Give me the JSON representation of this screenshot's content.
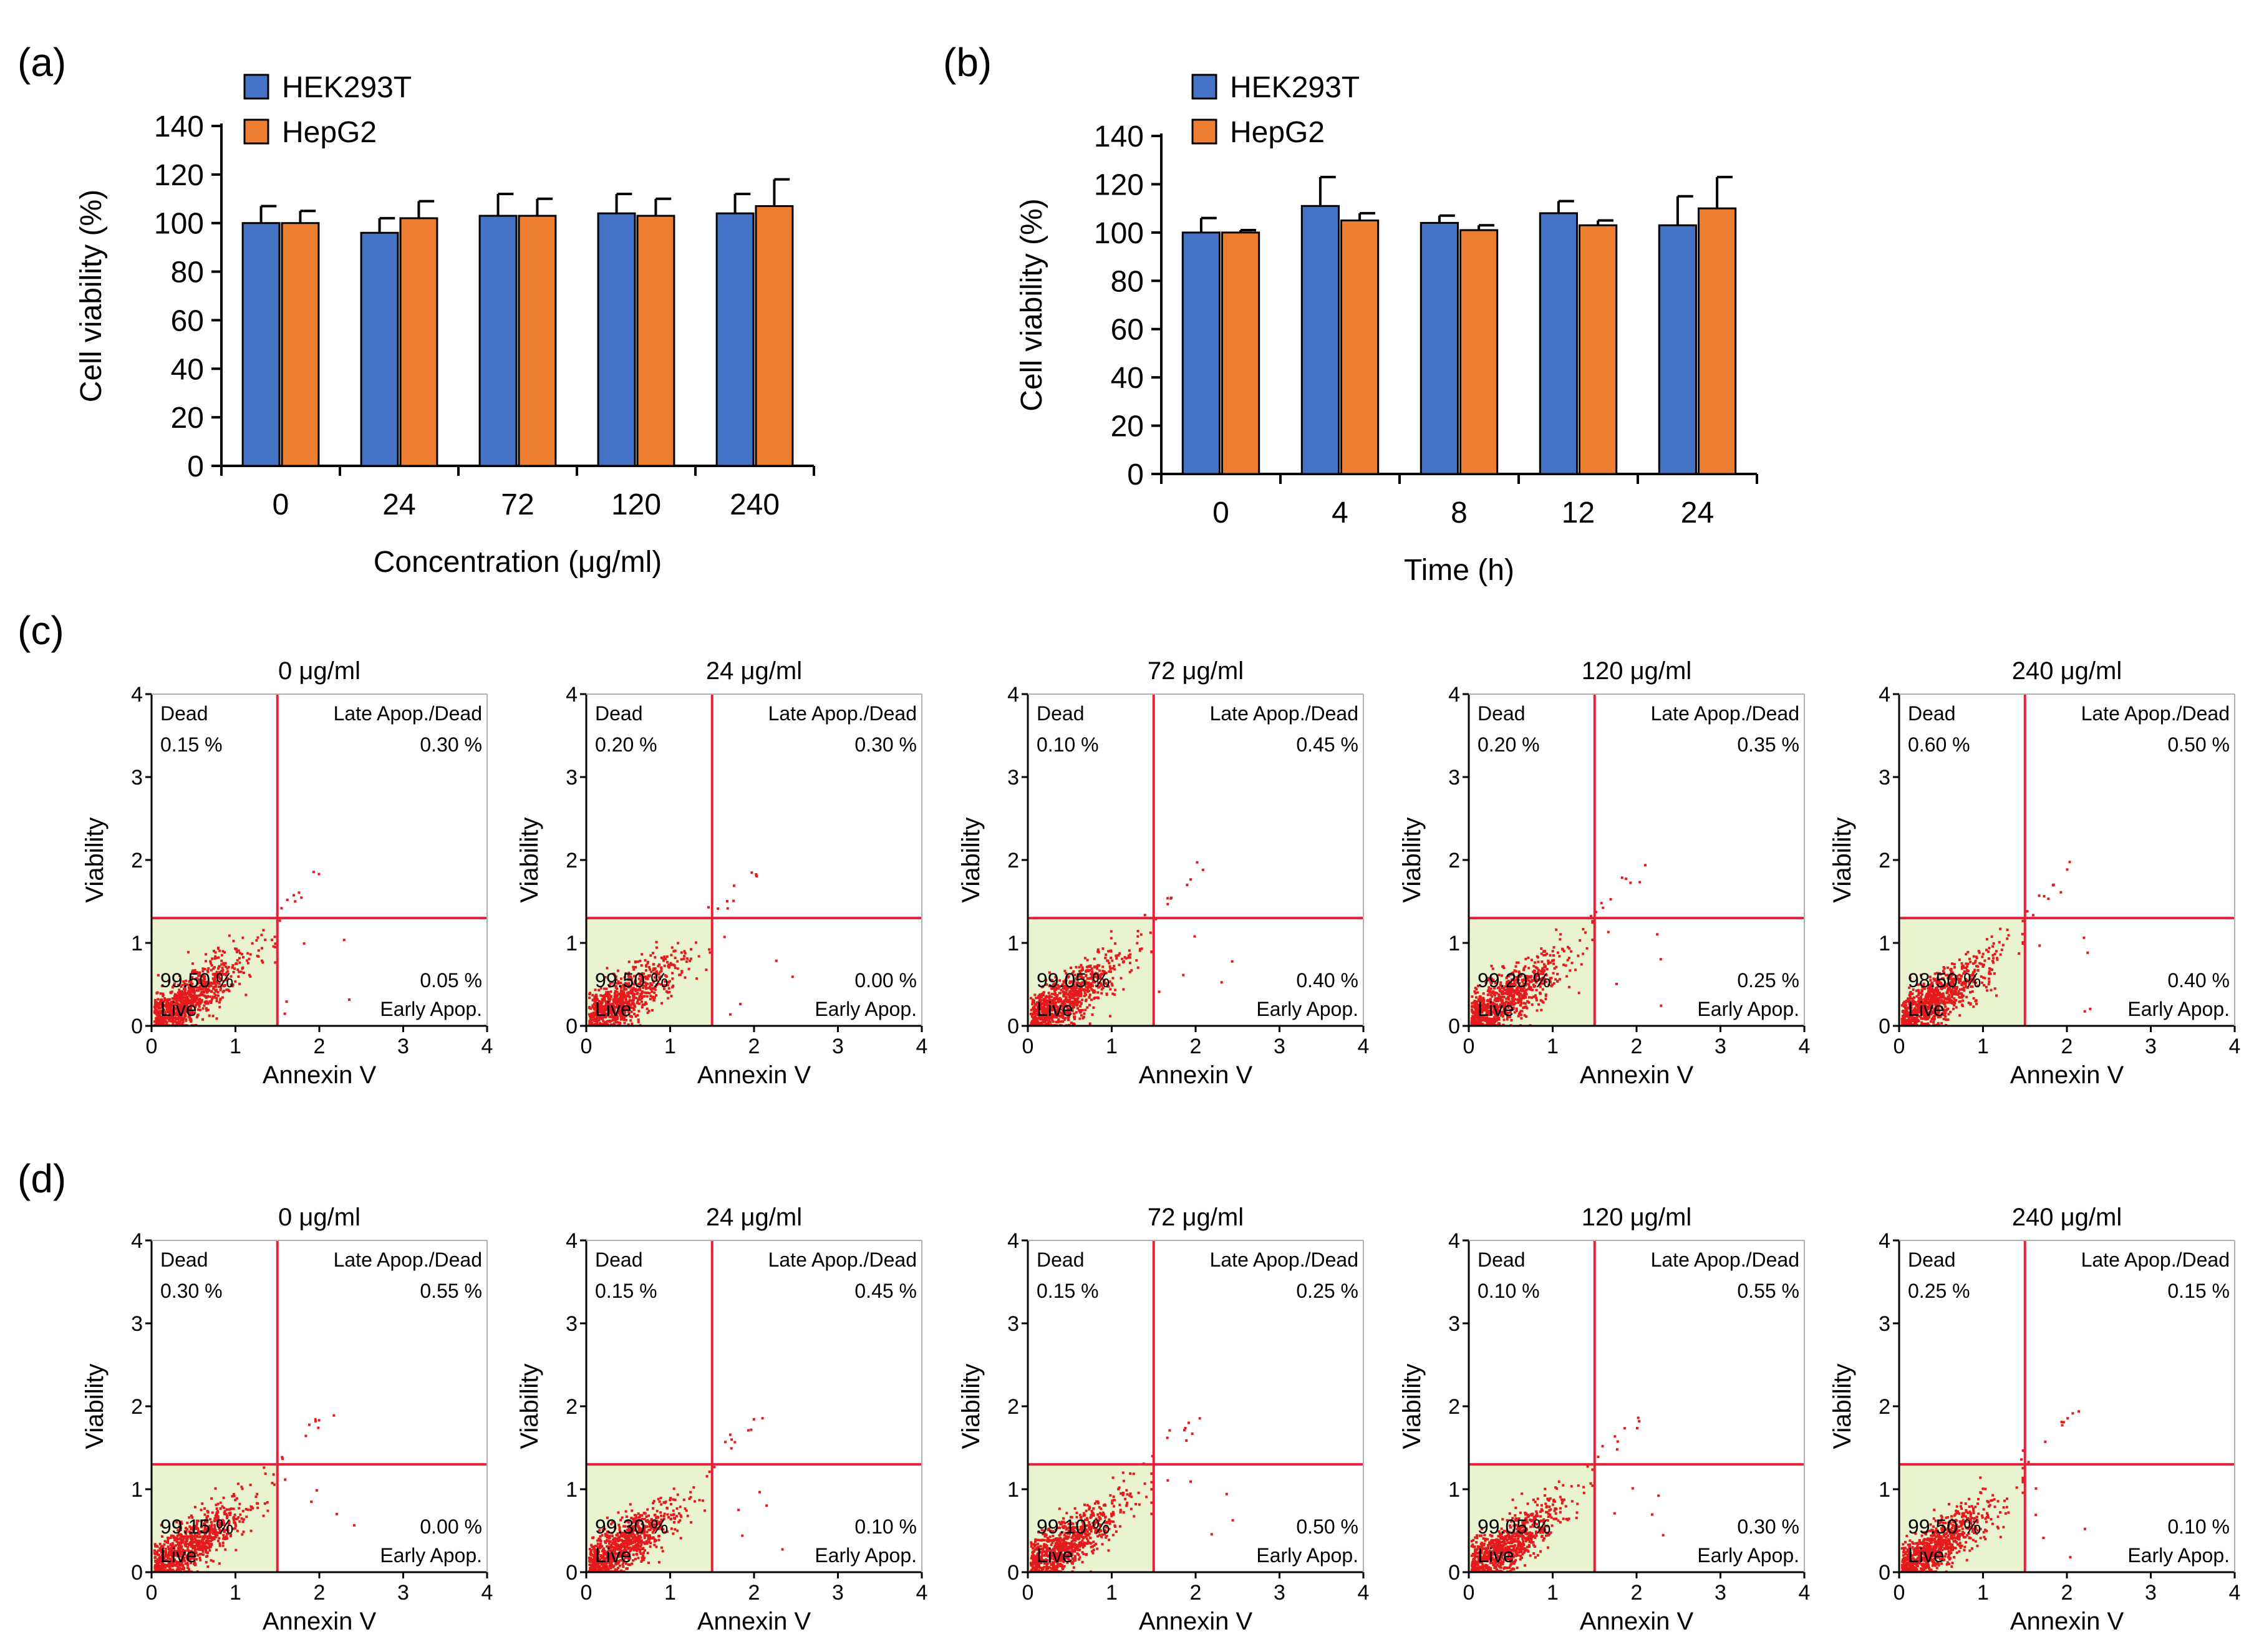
{
  "colors": {
    "hek": "#4472C4",
    "hepg2": "#ED7D31",
    "gate_line": "#E8203A",
    "live_fill": "#EAF3CF",
    "dots": "#E41A1C",
    "axis": "#000000"
  },
  "panel_labels": [
    "(a)",
    "(b)",
    "(c)",
    "(d)"
  ],
  "chart_data": [
    {
      "id": "a",
      "type": "bar",
      "title": "",
      "xlabel": "Concentration  (μg/ml)",
      "ylabel": "Cell viability  (%)",
      "ylim": [
        0,
        140
      ],
      "yticks": [
        0,
        20,
        40,
        60,
        80,
        100,
        120,
        140
      ],
      "categories": [
        "0",
        "24",
        "72",
        "120",
        "240"
      ],
      "legend": [
        "HEK293T",
        "HepG2"
      ],
      "series": [
        {
          "name": "HEK293T",
          "color_key": "hek",
          "values": [
            100,
            96,
            103,
            104,
            104
          ],
          "errors": [
            7,
            6,
            9,
            8,
            8
          ]
        },
        {
          "name": "HepG2",
          "color_key": "hepg2",
          "values": [
            100,
            102,
            103,
            103,
            107
          ],
          "errors": [
            5,
            7,
            7,
            7,
            11
          ]
        }
      ]
    },
    {
      "id": "b",
      "type": "bar",
      "title": "",
      "xlabel": "Time  (h)",
      "ylabel": "Cell viability  (%)",
      "ylim": [
        0,
        140
      ],
      "yticks": [
        0,
        20,
        40,
        60,
        80,
        100,
        120,
        140
      ],
      "categories": [
        "0",
        "4",
        "8",
        "12",
        "24"
      ],
      "legend": [
        "HEK293T",
        "HepG2"
      ],
      "series": [
        {
          "name": "HEK293T",
          "color_key": "hek",
          "values": [
            100,
            111,
            104,
            108,
            103
          ],
          "errors": [
            6,
            12,
            3,
            5,
            12
          ]
        },
        {
          "name": "HepG2",
          "color_key": "hepg2",
          "values": [
            100,
            105,
            101,
            103,
            110
          ],
          "errors": [
            1,
            3,
            2,
            2,
            13
          ]
        }
      ]
    },
    {
      "id": "c",
      "type": "scatter",
      "xlabel": "Annexin V",
      "ylabel": "Viability",
      "xlim": [
        0,
        4
      ],
      "ylim": [
        0,
        4
      ],
      "ticks": [
        "0",
        "1",
        "2",
        "3",
        "4"
      ],
      "gate": {
        "x": 1.5,
        "y": 1.3
      },
      "quadrant_labels": {
        "dead": "Dead",
        "late": "Late Apop./Dead",
        "live": "Live",
        "early": "Early Apop."
      },
      "plots": [
        {
          "title": "0 μg/ml",
          "dead": "0.15 %",
          "late": "0.30 %",
          "live": "99.50 %",
          "early": "0.05 %"
        },
        {
          "title": "24 μg/ml",
          "dead": "0.20 %",
          "late": "0.30 %",
          "live": "99.50 %",
          "early": "0.00 %"
        },
        {
          "title": "72 μg/ml",
          "dead": "0.10 %",
          "late": "0.45 %",
          "live": "99.05 %",
          "early": "0.40 %"
        },
        {
          "title": "120 μg/ml",
          "dead": "0.20 %",
          "late": "0.35 %",
          "live": "99.20 %",
          "early": "0.25 %"
        },
        {
          "title": "240 μg/ml",
          "dead": "0.60 %",
          "late": "0.50 %",
          "live": "98.50 %",
          "early": "0.40 %"
        }
      ]
    },
    {
      "id": "d",
      "type": "scatter",
      "xlabel": "Annexin V",
      "ylabel": "Viability",
      "xlim": [
        0,
        4
      ],
      "ylim": [
        0,
        4
      ],
      "ticks": [
        "0",
        "1",
        "2",
        "3",
        "4"
      ],
      "gate": {
        "x": 1.5,
        "y": 1.3
      },
      "quadrant_labels": {
        "dead": "Dead",
        "late": "Late Apop./Dead",
        "live": "Live",
        "early": "Early Apop."
      },
      "plots": [
        {
          "title": "0 μg/ml",
          "dead": "0.30 %",
          "late": "0.55 %",
          "live": "99.15 %",
          "early": "0.00 %"
        },
        {
          "title": "24 μg/ml",
          "dead": "0.15 %",
          "late": "0.45 %",
          "live": "99.30 %",
          "early": "0.10 %"
        },
        {
          "title": "72 μg/ml",
          "dead": "0.15 %",
          "late": "0.25 %",
          "live": "99.10 %",
          "early": "0.50 %"
        },
        {
          "title": "120 μg/ml",
          "dead": "0.10 %",
          "late": "0.55 %",
          "live": "99.05 %",
          "early": "0.30 %"
        },
        {
          "title": "240 μg/ml",
          "dead": "0.25 %",
          "late": "0.15 %",
          "live": "99.50 %",
          "early": "0.10 %"
        }
      ]
    }
  ]
}
